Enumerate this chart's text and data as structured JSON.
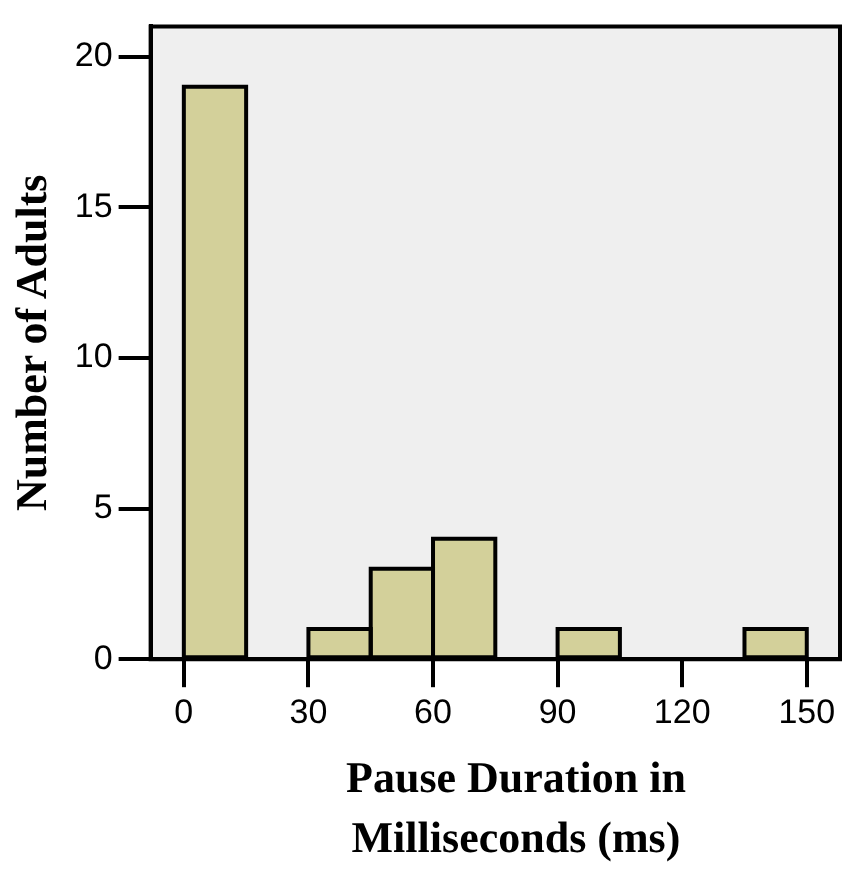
{
  "chart_data": {
    "type": "histogram",
    "xlabel": "Pause Duration in Milliseconds (ms)",
    "ylabel": "Number of Adults",
    "bins": [
      0,
      15,
      30,
      45,
      60,
      75,
      90,
      105,
      120,
      135,
      150
    ],
    "values": [
      19,
      0,
      1,
      3,
      4,
      0,
      1,
      0,
      0,
      1
    ],
    "color": "#d3d09a",
    "xlim": [
      -8,
      158
    ],
    "xticks": [
      0,
      30,
      60,
      90,
      120,
      150
    ],
    "ylim": [
      0,
      21
    ],
    "yticks": [
      0,
      5,
      10,
      15,
      20
    ],
    "grid": false,
    "legend": false
  }
}
